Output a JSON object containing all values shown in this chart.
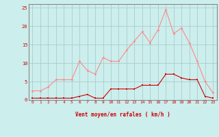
{
  "x": [
    0,
    1,
    2,
    3,
    4,
    5,
    6,
    7,
    8,
    9,
    10,
    11,
    12,
    13,
    14,
    15,
    16,
    17,
    18,
    19,
    20,
    21,
    22,
    23
  ],
  "rafales": [
    2.5,
    2.5,
    3.5,
    5.5,
    5.5,
    5.5,
    10.5,
    8.0,
    7.0,
    11.5,
    10.5,
    10.5,
    13.5,
    16.0,
    18.5,
    15.5,
    19.0,
    24.5,
    18.0,
    19.5,
    15.5,
    10.5,
    5.0,
    2.0
  ],
  "vent_moyen": [
    0.5,
    0.5,
    0.5,
    0.5,
    0.5,
    0.5,
    1.0,
    1.5,
    0.5,
    0.5,
    3.0,
    3.0,
    3.0,
    3.0,
    4.0,
    4.0,
    4.0,
    7.0,
    7.0,
    6.0,
    5.5,
    5.5,
    1.0,
    0.5
  ],
  "color_rafales": "#FF8888",
  "color_vent": "#CC0000",
  "bg_color": "#CCEEED",
  "grid_color": "#AACCCC",
  "xlabel": "Vent moyen/en rafales ( km/h )",
  "ylim": [
    0,
    26
  ],
  "yticks": [
    0,
    5,
    10,
    15,
    20,
    25
  ],
  "xticks": [
    0,
    1,
    2,
    3,
    4,
    5,
    6,
    7,
    8,
    9,
    10,
    11,
    12,
    13,
    14,
    15,
    16,
    17,
    18,
    19,
    20,
    21,
    22,
    23
  ]
}
